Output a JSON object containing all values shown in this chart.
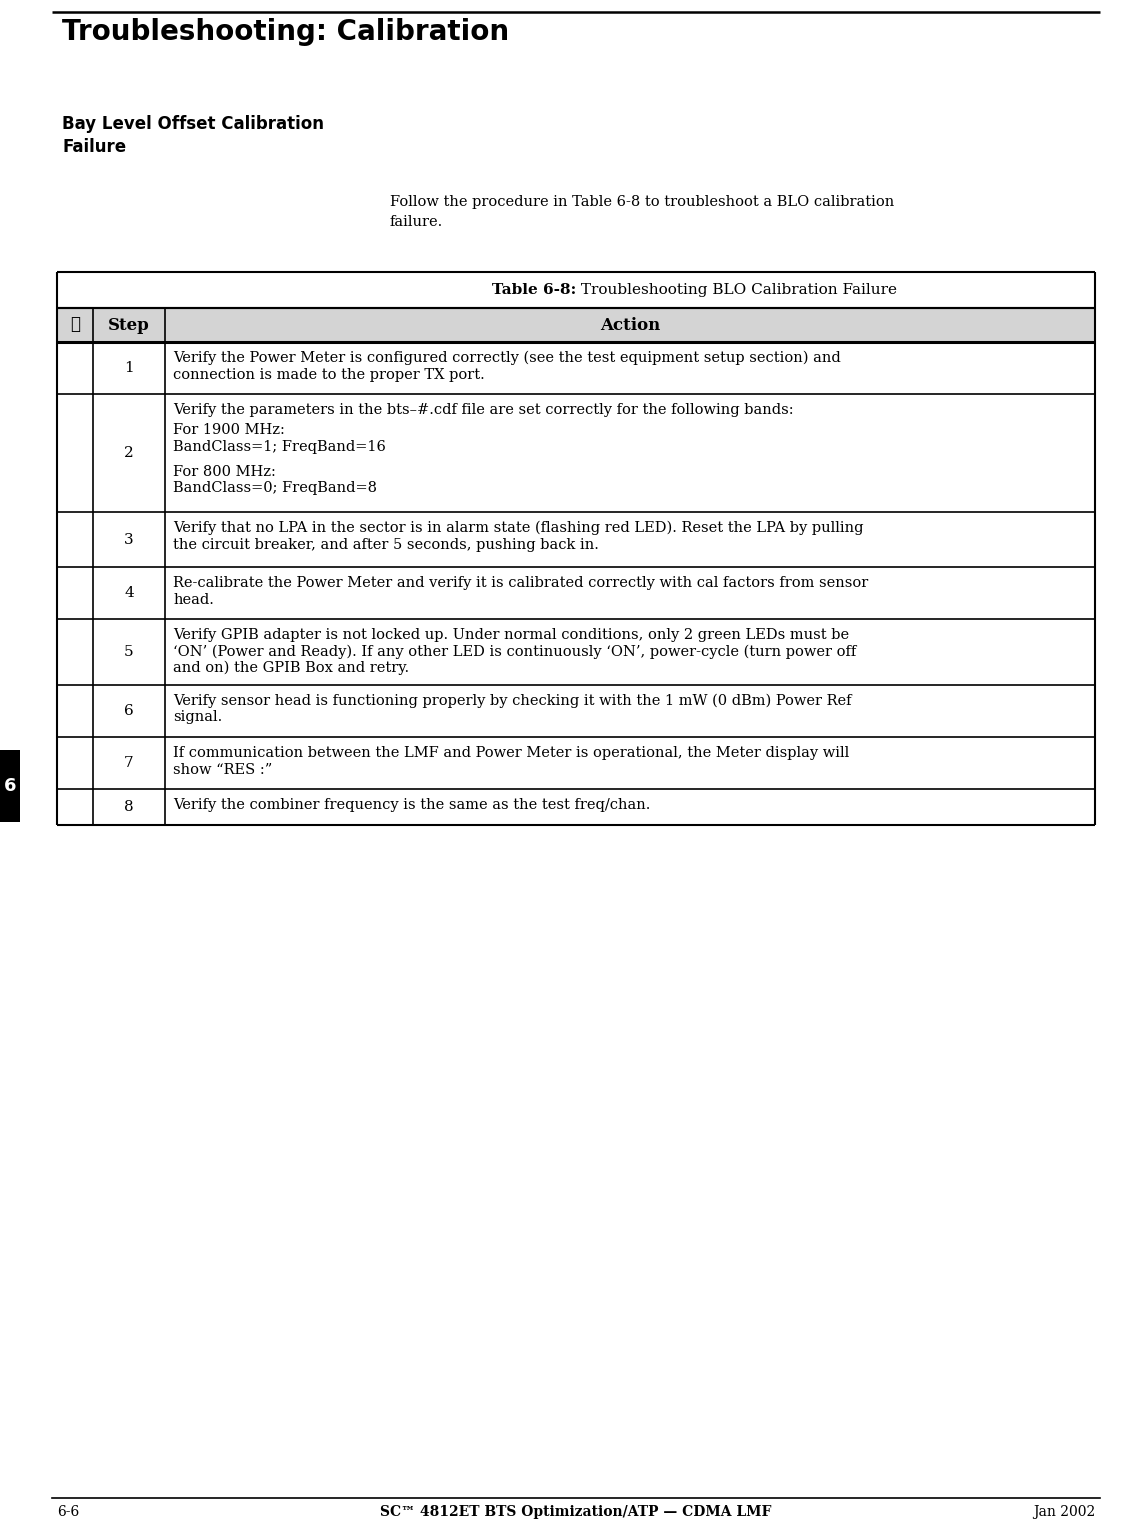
{
  "page_title": "Troubleshooting: Calibration",
  "section_title_line1": "Bay Level Offset Calibration",
  "section_title_line2": "Failure",
  "intro_text_line1": "Follow the procedure in Table 6-8 to troubleshoot a BLO calibration",
  "intro_text_line2": "failure.",
  "table_title_bold": "Table 6-8:",
  "table_title_normal": " Troubleshooting BLO Calibration Failure",
  "header_check": "✓",
  "header_step": "Step",
  "header_action": "Action",
  "rows": [
    {
      "step": "1",
      "action_lines": [
        "Verify the Power Meter is configured correctly (see the test equipment setup section) and",
        "connection is made to the proper TX port."
      ]
    },
    {
      "step": "2",
      "action_lines": [
        "Verify the parameters in the bts–#.cdf file are set correctly for the following bands:",
        "For 1900 MHz:",
        "BandClass=1; FreqBand=16",
        "For 800 MHz:",
        "BandClass=0; FreqBand=8"
      ]
    },
    {
      "step": "3",
      "action_lines": [
        "Verify that no LPA in the sector is in alarm state (flashing red LED). Reset the LPA by pulling",
        "the circuit breaker, and after 5 seconds, pushing back in."
      ]
    },
    {
      "step": "4",
      "action_lines": [
        "Re-calibrate the Power Meter and verify it is calibrated correctly with cal factors from sensor",
        "head."
      ]
    },
    {
      "step": "5",
      "action_lines": [
        "Verify GPIB adapter is not locked up. Under normal conditions, only 2 green LEDs must be",
        "‘ON’ (Power and Ready). If any other LED is continuously ‘ON’, power-cycle (turn power off",
        "and on) the GPIB Box and retry."
      ]
    },
    {
      "step": "6",
      "action_lines": [
        "Verify sensor head is functioning properly by checking it with the 1 mW (0 dBm) Power Ref",
        "signal."
      ]
    },
    {
      "step": "7",
      "action_lines": [
        "If communication between the LMF and Power Meter is operational, the Meter display will",
        "show “RES :”"
      ]
    },
    {
      "step": "8",
      "action_lines": [
        "Verify the combiner frequency is the same as the test freq/chan."
      ]
    }
  ],
  "footer_left": "6-6",
  "footer_center": "SC™ 4812ET BTS Optimization/ATP — CDMA LMF",
  "footer_right": "Jan 2002",
  "page_num": "6",
  "bg_color": "#ffffff"
}
